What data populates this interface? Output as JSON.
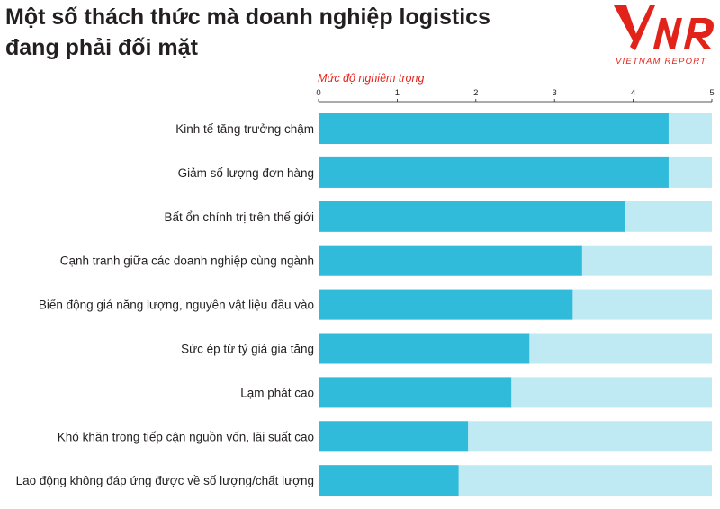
{
  "title_line1": "Một số thách thức mà doanh nghiệp logistics",
  "title_line2": "đang phải đối mặt",
  "logo": {
    "mark": "VNR",
    "caption": "VIETNAM REPORT",
    "color": "#e2231a"
  },
  "colors": {
    "bar": "#2fbbd9",
    "track": "#bfe9f3",
    "axis_title": "#e2231a",
    "text": "#231f20"
  },
  "chart_data": {
    "type": "bar",
    "orientation": "horizontal",
    "title": "Một số thách thức mà doanh nghiệp logistics đang phải đối mặt",
    "xlabel": "Mức độ nghiêm trọng",
    "xlim": [
      0,
      5
    ],
    "xticks": [
      0,
      1,
      2,
      3,
      4,
      5
    ],
    "xaxis_position": "top",
    "grid": false,
    "categories": [
      "Kinh tế tăng trưởng chậm",
      "Giảm số lượng đơn hàng",
      "Bất ổn chính trị trên thế giới",
      "Cạnh tranh giữa các doanh nghiệp cùng ngành",
      "Biến động giá năng lượng, nguyên vật liệu đầu vào",
      "Sức ép từ tỷ giá gia tăng",
      "Lạm phát cao",
      "Khó khăn trong tiếp cận nguồn vốn, lãi suất cao",
      "Lao động không đáp ứng được về số lượng/chất lượng"
    ],
    "values": [
      4.45,
      4.45,
      3.9,
      3.35,
      3.23,
      2.68,
      2.45,
      1.9,
      1.78
    ]
  }
}
